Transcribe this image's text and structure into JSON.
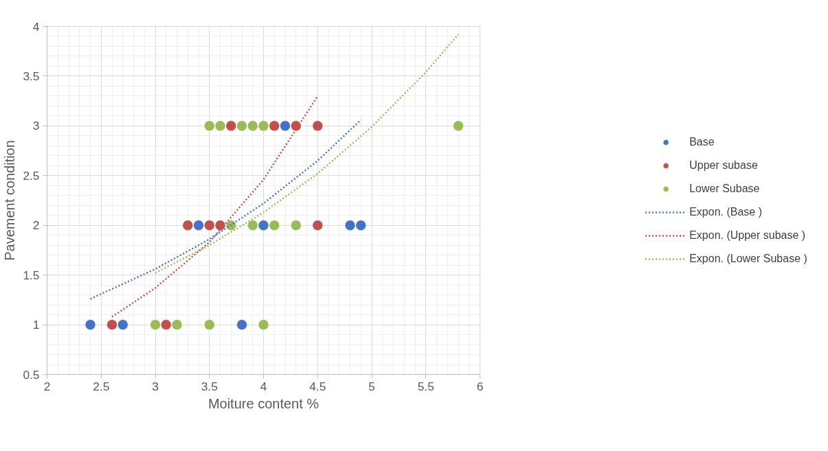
{
  "chart_data": {
    "type": "scatter",
    "xlabel": "Moiture content %",
    "ylabel": "Pavement condition",
    "xlim": [
      2,
      6
    ],
    "xticks": [
      2,
      2.5,
      3,
      3.5,
      4,
      4.5,
      5,
      5.5,
      6
    ],
    "ylim": [
      0.5,
      4
    ],
    "yticks": [
      0.5,
      1,
      1.5,
      2,
      2.5,
      3,
      3.5,
      4
    ],
    "grid": true,
    "legend": "right",
    "marker": "circle",
    "series": [
      {
        "name": "Base",
        "color": "#4472c4",
        "x": [
          4.2,
          3.4,
          4.0,
          4.8,
          4.9,
          2.4,
          2.7,
          3.8
        ],
        "values": [
          3,
          2,
          2,
          2,
          2,
          1,
          1,
          1
        ]
      },
      {
        "name": "Upper subase",
        "color": "#c0504d",
        "x": [
          3.7,
          4.1,
          4.3,
          4.5,
          3.3,
          3.5,
          3.6,
          4.5,
          2.6,
          3.1
        ],
        "values": [
          3,
          3,
          3,
          3,
          2,
          2,
          2,
          2,
          1,
          1
        ]
      },
      {
        "name": "Lower Subase",
        "color": "#9bbb59",
        "x": [
          3.5,
          3.6,
          3.8,
          3.9,
          4.0,
          5.8,
          3.7,
          3.9,
          4.1,
          4.3,
          3.0,
          3.2,
          3.5,
          4.0
        ],
        "values": [
          3,
          3,
          3,
          3,
          3,
          3,
          2,
          2,
          2,
          2,
          1,
          1,
          1,
          1
        ]
      },
      {
        "name": "Expon. (Base )",
        "type": "line",
        "line_style": "dotted",
        "marker": "none",
        "color": "#4472c4",
        "x": [
          2.4,
          3.0,
          3.5,
          4.0,
          4.5,
          4.9
        ],
        "values": [
          1.26,
          1.56,
          1.86,
          2.22,
          2.65,
          3.06
        ]
      },
      {
        "name": "Expon. (Upper subase )",
        "type": "line",
        "line_style": "dotted",
        "marker": "none",
        "color": "#c0504d",
        "x": [
          2.6,
          3.0,
          3.5,
          4.0,
          4.5
        ],
        "values": [
          1.08,
          1.37,
          1.83,
          2.46,
          3.3
        ]
      },
      {
        "name": "Expon. (Lower Subase )",
        "type": "line",
        "line_style": "dotted",
        "marker": "none",
        "color": "#9bbb59",
        "x": [
          3.0,
          3.5,
          4.0,
          4.5,
          5.0,
          5.5,
          5.8
        ],
        "values": [
          1.52,
          1.8,
          2.13,
          2.52,
          2.99,
          3.54,
          3.92
        ]
      }
    ]
  }
}
